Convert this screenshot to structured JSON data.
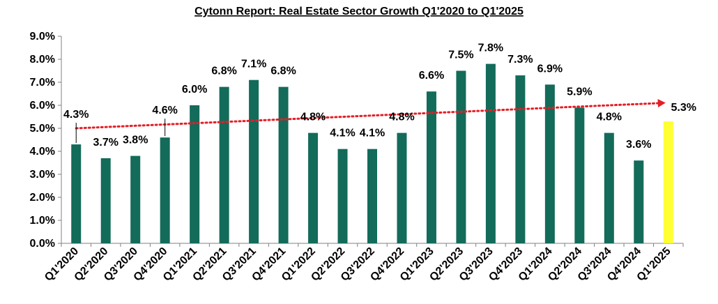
{
  "chart_data": {
    "type": "bar",
    "title": "Cytonn Report: Real Estate Sector Growth Q1'2020 to Q1'2025",
    "xlabel": "",
    "ylabel": "",
    "ylim": [
      0,
      9
    ],
    "y_ticks": [
      "0.0%",
      "1.0%",
      "2.0%",
      "3.0%",
      "4.0%",
      "5.0%",
      "6.0%",
      "7.0%",
      "8.0%",
      "9.0%"
    ],
    "grid": false,
    "legend": "none",
    "categories": [
      "Q1'2020",
      "Q2'2020",
      "Q3'2020",
      "Q4'2020",
      "Q1'2021",
      "Q2'2021",
      "Q3'2021",
      "Q4'2021",
      "Q1'2022",
      "Q2'2022",
      "Q3'2022",
      "Q4'2022",
      "Q1'2023",
      "Q2'2023",
      "Q3'2023",
      "Q4'2023",
      "Q1'2024",
      "Q2'2024",
      "Q3'2024",
      "Q4'2024",
      "Q1'2025"
    ],
    "values": [
      4.3,
      3.7,
      3.8,
      4.6,
      6.0,
      6.8,
      7.1,
      6.8,
      4.8,
      4.1,
      4.1,
      4.8,
      6.6,
      7.5,
      7.8,
      7.3,
      6.9,
      5.9,
      4.8,
      3.6,
      5.3
    ],
    "data_labels": [
      "4.3%",
      "3.7%",
      "3.8%",
      "4.6%",
      "6.0%",
      "6.8%",
      "7.1%",
      "6.8%",
      "4.8%",
      "4.1%",
      "4.1%",
      "4.8%",
      "6.6%",
      "7.5%",
      "7.8%",
      "7.3%",
      "6.9%",
      "5.9%",
      "4.8%",
      "3.6%",
      "5.3%"
    ],
    "bar_color": "#136B5A",
    "highlight_index": 20,
    "highlight_color": "#FFFF33",
    "trendline": {
      "style": "dotted",
      "color": "#E41E26",
      "start": 5.0,
      "end": 6.1
    }
  }
}
